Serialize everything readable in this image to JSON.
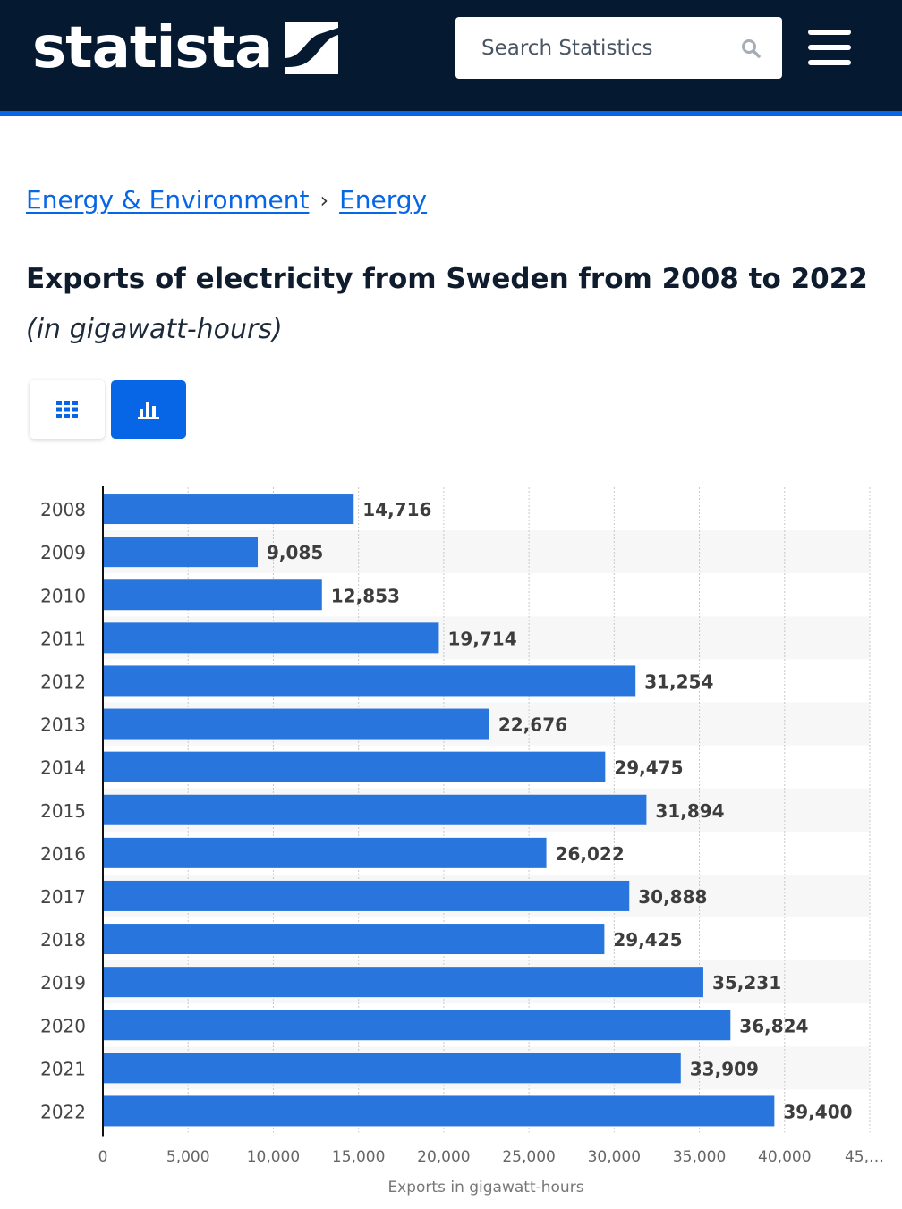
{
  "header": {
    "logo_text": "statista",
    "search_placeholder": "Search Statistics",
    "icons": {
      "search": "search-icon",
      "menu": "menu-icon",
      "logo": "statista-logo-mark"
    }
  },
  "breadcrumb": {
    "items": [
      "Energy & Environment",
      "Energy"
    ],
    "separator": "›"
  },
  "page": {
    "title": "Exports of electricity from Sweden from 2008 to 2022",
    "subtitle": "(in gigawatt-hours)"
  },
  "view_toggle": {
    "table_icon": "table-grid-icon",
    "chart_icon": "bar-chart-icon",
    "active": "chart"
  },
  "colors": {
    "header_bg": "#051a31",
    "accent": "#0666e5",
    "bar": "#2876dd",
    "label": "#3d3d3d",
    "axis_text": "#666666"
  },
  "chart_data": {
    "type": "bar",
    "orientation": "horizontal",
    "categories": [
      "2008",
      "2009",
      "2010",
      "2011",
      "2012",
      "2013",
      "2014",
      "2015",
      "2016",
      "2017",
      "2018",
      "2019",
      "2020",
      "2021",
      "2022"
    ],
    "values": [
      14716,
      9085,
      12853,
      19714,
      31254,
      22676,
      29475,
      31894,
      26022,
      30888,
      29425,
      35231,
      36824,
      33909,
      39400
    ],
    "value_labels": [
      "14,716",
      "9,085",
      "12,853",
      "19,714",
      "31,254",
      "22,676",
      "29,475",
      "31,894",
      "26,022",
      "30,888",
      "29,425",
      "35,231",
      "36,824",
      "33,909",
      "39,400"
    ],
    "xlim": [
      0,
      45000
    ],
    "x_ticks": [
      "0",
      "5,000",
      "10,000",
      "15,000",
      "20,000",
      "25,000",
      "30,000",
      "35,000",
      "40,000",
      "45,…"
    ],
    "xlabel": "Exports in gigawatt-hours",
    "ylabel": "",
    "grid": true
  }
}
